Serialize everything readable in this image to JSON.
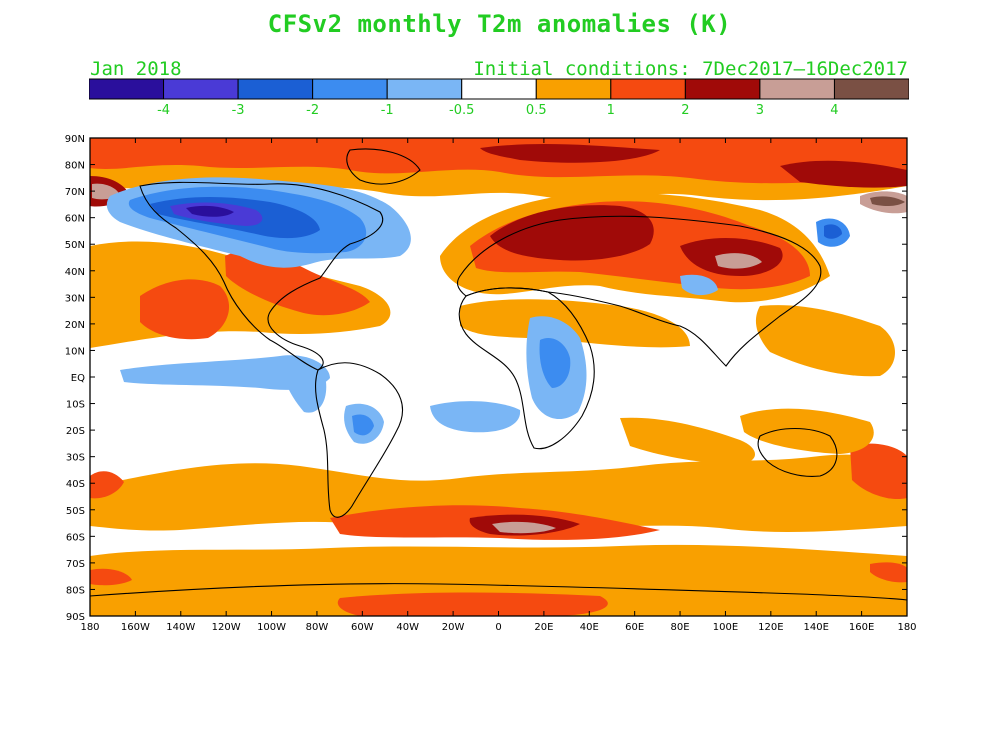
{
  "title": "CFSv2 monthly T2m anomalies (K)",
  "valid_month": "Jan 2018",
  "initial_conditions": "Initial conditions: 7Dec2017–16Dec2017",
  "colorbar": {
    "colors": [
      "#2a0f9c",
      "#4a3ad6",
      "#1b5fd4",
      "#3c8cf0",
      "#7ab6f5",
      "#ffffff",
      "#f9a000",
      "#f54a10",
      "#a00a08",
      "#c89e96",
      "#7a5044"
    ],
    "labels": [
      "-4",
      "-3",
      "-2",
      "-1",
      "-0.5",
      "0.5",
      "1",
      "2",
      "3",
      "4"
    ],
    "label_color": "#22cc22"
  },
  "map": {
    "lat_labels": [
      "90N",
      "80N",
      "70N",
      "60N",
      "50N",
      "40N",
      "30N",
      "20N",
      "10N",
      "EQ",
      "10S",
      "20S",
      "30S",
      "40S",
      "50S",
      "60S",
      "70S",
      "80S",
      "90S"
    ],
    "lon_labels": [
      "180",
      "160W",
      "140W",
      "120W",
      "100W",
      "80W",
      "60W",
      "40W",
      "20W",
      "0",
      "20E",
      "40E",
      "60E",
      "80E",
      "100E",
      "120E",
      "140E",
      "160E",
      "180"
    ],
    "tick_label_color": "#000000"
  }
}
